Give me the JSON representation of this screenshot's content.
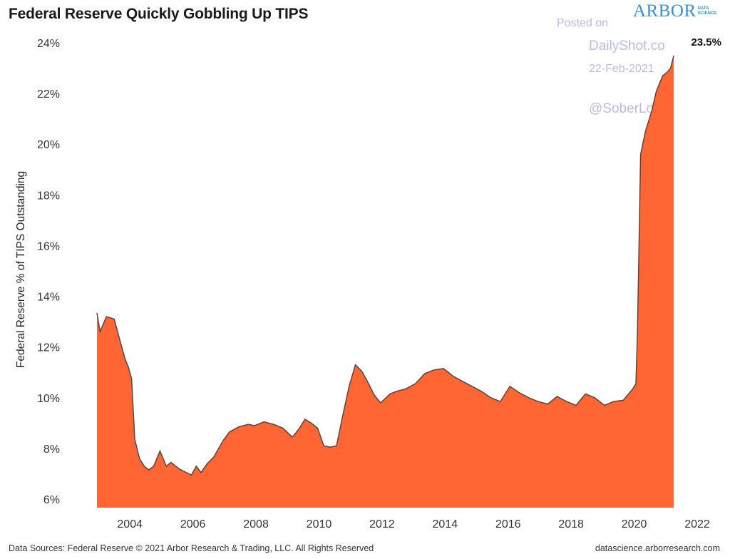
{
  "header": {
    "title": "Federal Reserve Quickly Gobbling Up TIPS",
    "logo_main": "ARBOR",
    "logo_sub_line1": "DATA",
    "logo_sub_line2": "SCIENCE"
  },
  "watermark": {
    "posted": "Posted on",
    "site": "DailyShot.co",
    "date": "22-Feb-2021",
    "handle": "@SoberLook"
  },
  "footer": {
    "left": "Data Sources: Federal Reserve © 2021 Arbor Research & Trading, LLC. All Rights Reserved",
    "right": "datascience.arborresearch.com"
  },
  "colors": {
    "fill": "#ff6633",
    "line": "#444444"
  },
  "chart_data": {
    "type": "area",
    "title": "Federal Reserve Quickly Gobbling Up TIPS",
    "xlabel": "",
    "ylabel": "Federal Reserve % of TIPS Outstanding",
    "xlim": [
      2003.0,
      2022.0
    ],
    "ylim": [
      6.0,
      24.0
    ],
    "y_ticks": [
      "6%",
      "8%",
      "10%",
      "12%",
      "14%",
      "16%",
      "18%",
      "20%",
      "22%",
      "24%"
    ],
    "y_tick_values": [
      6,
      8,
      10,
      12,
      14,
      16,
      18,
      20,
      22,
      24
    ],
    "x_ticks": [
      "2004",
      "2006",
      "2008",
      "2010",
      "2012",
      "2014",
      "2016",
      "2018",
      "2020",
      "2022"
    ],
    "x_tick_values": [
      2004,
      2006,
      2008,
      2010,
      2012,
      2014,
      2016,
      2018,
      2020,
      2022
    ],
    "end_label": "23.5%",
    "grid": false,
    "series": [
      {
        "x": [
          2003.0,
          2003.1,
          2003.2,
          2003.3,
          2003.55,
          2003.7,
          2003.9,
          2004.0,
          2004.1,
          2004.2,
          2004.35,
          2004.5,
          2004.65,
          2004.8,
          2005.0,
          2005.2,
          2005.35,
          2005.6,
          2005.75,
          2006.0,
          2006.15,
          2006.3,
          2006.5,
          2006.7,
          2007.0,
          2007.2,
          2007.5,
          2007.8,
          2008.0,
          2008.3,
          2008.6,
          2008.9,
          2009.2,
          2009.4,
          2009.6,
          2009.8,
          2010.0,
          2010.2,
          2010.4,
          2010.6,
          2010.8,
          2011.0,
          2011.2,
          2011.4,
          2011.6,
          2011.8,
          2012.0,
          2012.3,
          2012.5,
          2012.8,
          2013.1,
          2013.4,
          2013.7,
          2014.0,
          2014.3,
          2014.6,
          2014.9,
          2015.2,
          2015.5,
          2015.8,
          2016.1,
          2016.4,
          2016.7,
          2017.0,
          2017.3,
          2017.6,
          2017.9,
          2018.2,
          2018.5,
          2018.8,
          2019.1,
          2019.4,
          2019.7,
          2020.0,
          2020.1,
          2020.15,
          2020.25,
          2020.4,
          2020.6,
          2020.75,
          2020.95,
          2021.1,
          2021.2,
          2021.3
        ],
        "values": [
          13.35,
          12.6,
          12.9,
          13.2,
          13.1,
          12.4,
          11.5,
          11.2,
          10.75,
          8.35,
          7.6,
          7.3,
          7.15,
          7.3,
          7.9,
          7.3,
          7.45,
          7.2,
          7.1,
          6.95,
          7.3,
          7.05,
          7.4,
          7.65,
          8.3,
          8.65,
          8.85,
          8.95,
          8.9,
          9.05,
          8.95,
          8.8,
          8.45,
          8.75,
          9.15,
          9.0,
          8.8,
          8.1,
          8.05,
          8.1,
          9.3,
          10.45,
          11.3,
          11.05,
          10.6,
          10.1,
          9.8,
          10.15,
          10.25,
          10.35,
          10.55,
          10.95,
          11.1,
          11.15,
          10.85,
          10.65,
          10.45,
          10.25,
          10.0,
          9.85,
          10.45,
          10.2,
          10.0,
          9.85,
          9.75,
          10.05,
          9.85,
          9.7,
          10.15,
          10.0,
          9.7,
          9.85,
          9.9,
          10.35,
          10.55,
          12.6,
          19.6,
          20.5,
          21.3,
          22.1,
          22.7,
          22.85,
          23.0,
          23.5
        ]
      }
    ]
  }
}
